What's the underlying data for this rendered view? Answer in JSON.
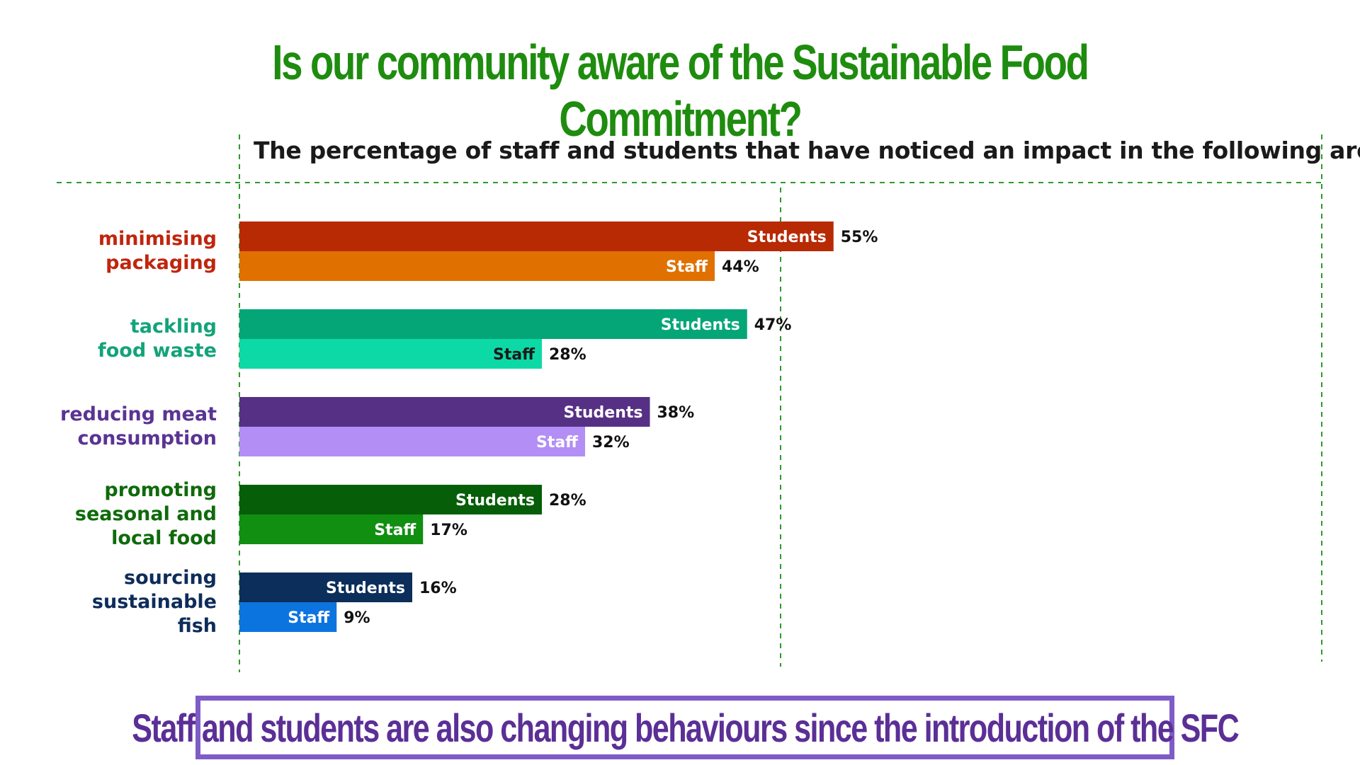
{
  "title": "Is our community aware of the Sustainable Food Commitment?",
  "footer": "Staff and students are also changing behaviours since the introduction of the SFC",
  "chart_data": {
    "type": "bar",
    "orientation": "horizontal",
    "title": "The percentage of staff and students that have noticed an impact in the following areas:",
    "xlim": [
      0,
      100
    ],
    "value_suffix": "%",
    "categories": [
      {
        "label": "minimising\npackaging",
        "label_color": "#c0250d",
        "bars": [
          {
            "series": "Students",
            "value": 55,
            "color": "#b82a04",
            "text_color": "#ffffff"
          },
          {
            "series": "Staff",
            "value": 44,
            "color": "#e07000",
            "text_color": "#ffffff"
          }
        ]
      },
      {
        "label": "tackling\nfood waste",
        "label_color": "#13a37a",
        "bars": [
          {
            "series": "Students",
            "value": 47,
            "color": "#04a678",
            "text_color": "#ffffff"
          },
          {
            "series": "Staff",
            "value": 28,
            "color": "#0dd9a6",
            "text_color": "#1a1a1a"
          }
        ]
      },
      {
        "label": "reducing meat\nconsumption",
        "label_color": "#5a3492",
        "bars": [
          {
            "series": "Students",
            "value": 38,
            "color": "#563085",
            "text_color": "#ffffff"
          },
          {
            "series": "Staff",
            "value": 32,
            "color": "#b28ef5",
            "text_color": "#ffffff"
          }
        ]
      },
      {
        "label": "promoting\nseasonal and\nlocal food",
        "label_color": "#0f6a0b",
        "bars": [
          {
            "series": "Students",
            "value": 28,
            "color": "#065e08",
            "text_color": "#ffffff"
          },
          {
            "series": "Staff",
            "value": 17,
            "color": "#118f10",
            "text_color": "#ffffff"
          }
        ]
      },
      {
        "label": "sourcing\nsustainable\nfish",
        "label_color": "#0e2c5a",
        "bars": [
          {
            "series": "Students",
            "value": 16,
            "color": "#0b2e5a",
            "text_color": "#ffffff"
          },
          {
            "series": "Staff",
            "value": 9,
            "color": "#0c74de",
            "text_color": "#ffffff"
          }
        ]
      }
    ],
    "colors": {
      "grid": "#2e9a2e",
      "value_label": "#111111"
    }
  }
}
